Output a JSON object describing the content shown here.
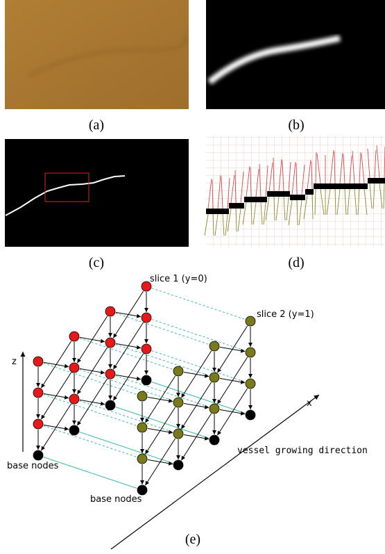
{
  "panels": [
    {
      "label": "(a)"
    },
    {
      "label": "(b)"
    },
    {
      "label": "(c)"
    },
    {
      "label": "(d)"
    },
    {
      "label": "(e)"
    }
  ],
  "graph": {
    "slice_labels": [
      "slice 1 (y=0)",
      "slice 2 (y=1)"
    ],
    "axis_labels": {
      "z": "z",
      "x": "x"
    },
    "direction_label": "vessel growing direction",
    "base_node_labels": [
      "base nodes",
      "base nodes"
    ]
  }
}
